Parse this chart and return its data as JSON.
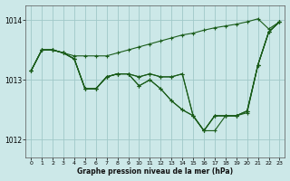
{
  "title": "Graphe pression niveau de la mer (hPa)",
  "bg_color": "#cce8e8",
  "grid_color": "#a0c8c8",
  "line_color": "#1a5c1a",
  "marker": "+",
  "markersize": 3,
  "linewidth": 0.8,
  "xlim": [
    -0.5,
    23.5
  ],
  "ylim": [
    1011.7,
    1014.25
  ],
  "yticks": [
    1012,
    1013,
    1014
  ],
  "xticks": [
    0,
    1,
    2,
    3,
    4,
    5,
    6,
    7,
    8,
    9,
    10,
    11,
    12,
    13,
    14,
    15,
    16,
    17,
    18,
    19,
    20,
    21,
    22,
    23
  ],
  "series": [
    [
      1013.15,
      1013.5,
      1013.5,
      1013.45,
      1013.4,
      1013.4,
      1013.4,
      1013.4,
      1013.45,
      1013.5,
      1013.55,
      1013.6,
      1013.65,
      1013.7,
      1013.75,
      1013.78,
      1013.83,
      1013.87,
      1013.9,
      1013.93,
      1013.97,
      1014.02,
      1013.85,
      1013.97
    ],
    [
      1013.15,
      1013.5,
      1013.5,
      1013.45,
      1013.35,
      1012.85,
      1012.85,
      1013.05,
      1013.1,
      1013.1,
      1013.05,
      1013.1,
      1013.05,
      1013.05,
      1013.1,
      1012.4,
      1012.15,
      1012.15,
      1012.4,
      1012.4,
      1012.45,
      1013.25,
      1013.8,
      1013.97
    ],
    [
      1013.15,
      1013.5,
      1013.5,
      1013.45,
      1013.35,
      1012.85,
      1012.85,
      1013.05,
      1013.1,
      1013.1,
      1013.05,
      1013.1,
      1013.05,
      1013.05,
      1013.1,
      1012.4,
      1012.15,
      1012.4,
      1012.4,
      1012.4,
      1012.48,
      1013.25,
      1013.8,
      1013.97
    ],
    [
      1013.15,
      1013.5,
      1013.5,
      1013.45,
      1013.35,
      1012.85,
      1012.85,
      1013.05,
      1013.1,
      1013.1,
      1012.9,
      1013.0,
      1012.85,
      1012.65,
      1012.5,
      1012.4,
      1012.15,
      1012.4,
      1012.4,
      1012.4,
      1012.48,
      1013.25,
      1013.8,
      1013.97
    ],
    [
      1013.15,
      1013.5,
      1013.5,
      1013.45,
      1013.35,
      1012.85,
      1012.85,
      1013.05,
      1013.1,
      1013.1,
      1012.9,
      1013.0,
      1012.85,
      1012.65,
      1012.5,
      1012.4,
      1012.15,
      1012.4,
      1012.4,
      1012.4,
      1012.48,
      1013.25,
      1013.8,
      1013.97
    ]
  ]
}
